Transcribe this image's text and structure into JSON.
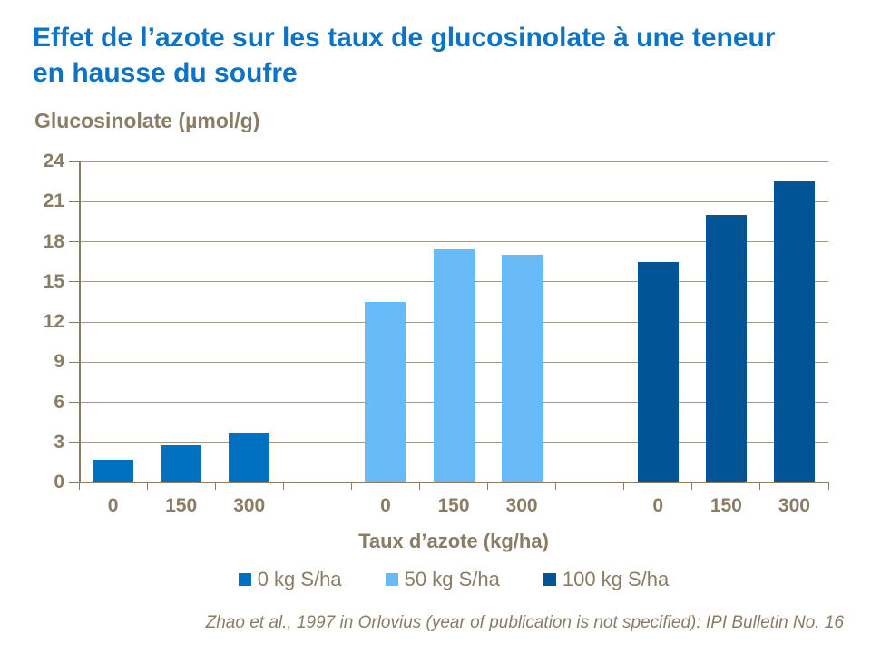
{
  "title": {
    "line1": "Effet de l’azote sur les taux de glucosinolate à une teneur",
    "line2": "en hausse du soufre"
  },
  "y_axis": {
    "title": "Glucosinolate (µmol/g)",
    "ticks": [
      0,
      3,
      6,
      9,
      12,
      15,
      18,
      21,
      24
    ]
  },
  "x_axis": {
    "title": "Taux d’azote (kg/ha)",
    "tick_labels": [
      "0",
      "150",
      "300"
    ]
  },
  "legend": {
    "items": [
      "0 kg S/ha",
      "50 kg S/ha",
      "100 kg S/ha"
    ]
  },
  "source": "Zhao et al., 1997 in Orlovius (year of publication is not specified): IPI Bulletin No. 16",
  "colors": {
    "title_text": "#0d73c5",
    "axis_text": "#8a7d66",
    "gridline": "#a39881",
    "series_0": "#0070c0",
    "series_1": "#69bbf8",
    "series_2": "#015496"
  },
  "chart_data": {
    "type": "bar",
    "title": "Effet de l’azote sur les taux de glucosinolate à une teneur en hausse du soufre",
    "categories": [
      "0",
      "150",
      "300"
    ],
    "series": [
      {
        "name": "0 kg S/ha",
        "color": "#0070c0",
        "values": [
          1.7,
          2.8,
          3.7
        ]
      },
      {
        "name": "50 kg S/ha",
        "color": "#69bbf8",
        "values": [
          13.5,
          17.5,
          17.0
        ]
      },
      {
        "name": "100 kg S/ha",
        "color": "#015496",
        "values": [
          16.5,
          20.0,
          22.5
        ]
      }
    ],
    "xlabel": "Taux d’azote (kg/ha)",
    "ylabel": "Glucosinolate (µmol/g)",
    "ylim": [
      0,
      24
    ],
    "yticks": [
      0,
      3,
      6,
      9,
      12,
      15,
      18,
      21,
      24
    ],
    "grid": true,
    "legend_position": "bottom",
    "source": "Zhao et al., 1997 in Orlovius (year of publication is not specified): IPI Bulletin No. 16"
  }
}
